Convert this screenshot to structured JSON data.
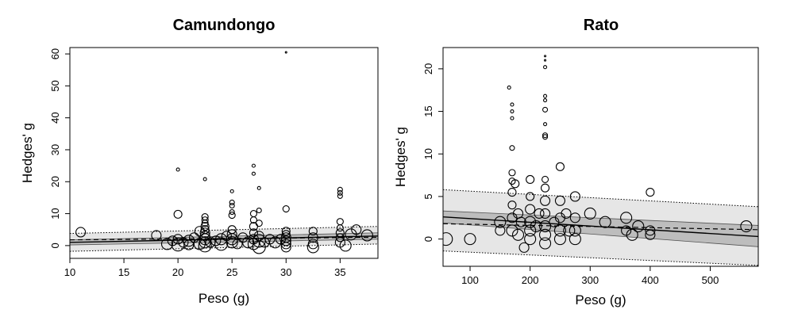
{
  "chart_data": [
    {
      "type": "scatter",
      "title": "Camundongo",
      "xlabel": "Peso (g)",
      "ylabel": "Hedges' g",
      "xlim": [
        10,
        38.5
      ],
      "ylim": [
        -4,
        62
      ],
      "xticks": [
        10,
        15,
        20,
        25,
        30,
        35
      ],
      "yticks": [
        0,
        10,
        20,
        30,
        40,
        50,
        60
      ],
      "grid": false,
      "points": [
        [
          11,
          4.2,
          6
        ],
        [
          18,
          3.2,
          6
        ],
        [
          19,
          0.5,
          7
        ],
        [
          19.5,
          1.5,
          6
        ],
        [
          20,
          23.8,
          2
        ],
        [
          20,
          9.8,
          5
        ],
        [
          20,
          2.0,
          6
        ],
        [
          20,
          0.3,
          8
        ],
        [
          20.5,
          1.0,
          6
        ],
        [
          21,
          1.5,
          7
        ],
        [
          21,
          0.2,
          6
        ],
        [
          21.5,
          2.5,
          6
        ],
        [
          22,
          4.5,
          6
        ],
        [
          22,
          0.5,
          7
        ],
        [
          22.5,
          20.8,
          2
        ],
        [
          22.5,
          9.0,
          4
        ],
        [
          22.5,
          8.0,
          4
        ],
        [
          22.5,
          7.0,
          4
        ],
        [
          22.5,
          6.0,
          5
        ],
        [
          22.5,
          5.0,
          5
        ],
        [
          22.5,
          4.0,
          6
        ],
        [
          22.5,
          3.0,
          6
        ],
        [
          22.5,
          2.0,
          7
        ],
        [
          22.5,
          1.0,
          7
        ],
        [
          22.5,
          0.0,
          8
        ],
        [
          23,
          1.0,
          6
        ],
        [
          23.5,
          1.5,
          6
        ],
        [
          24,
          2.0,
          7
        ],
        [
          24,
          0.5,
          8
        ],
        [
          24.5,
          3.0,
          6
        ],
        [
          25,
          17.0,
          2
        ],
        [
          25,
          13.5,
          3
        ],
        [
          25,
          12.5,
          3
        ],
        [
          25,
          10.5,
          3
        ],
        [
          25,
          9.5,
          4
        ],
        [
          25,
          5.0,
          5
        ],
        [
          25,
          3.5,
          6
        ],
        [
          25,
          2.0,
          7
        ],
        [
          25,
          1.0,
          7
        ],
        [
          25.5,
          0.5,
          6
        ],
        [
          26,
          2.5,
          6
        ],
        [
          26.5,
          1.0,
          7
        ],
        [
          27,
          25.0,
          2
        ],
        [
          27,
          22.5,
          2
        ],
        [
          27,
          10.0,
          4
        ],
        [
          27,
          8.0,
          4
        ],
        [
          27,
          6.0,
          5
        ],
        [
          27,
          4.0,
          5
        ],
        [
          27,
          2.0,
          6
        ],
        [
          27,
          0.5,
          7
        ],
        [
          27.5,
          18.0,
          2
        ],
        [
          27.5,
          11.0,
          3
        ],
        [
          27.5,
          7.0,
          4
        ],
        [
          27.5,
          3.0,
          6
        ],
        [
          27.5,
          1.5,
          8
        ],
        [
          27.5,
          -0.5,
          8
        ],
        [
          28,
          1.0,
          6
        ],
        [
          28.5,
          2.0,
          6
        ],
        [
          29,
          1.0,
          7
        ],
        [
          29.5,
          2.0,
          6
        ],
        [
          30,
          60.5,
          1
        ],
        [
          30,
          11.5,
          4
        ],
        [
          30,
          4.5,
          5
        ],
        [
          30,
          3.5,
          5
        ],
        [
          30,
          2.5,
          6
        ],
        [
          30,
          1.5,
          6
        ],
        [
          30,
          0.5,
          6
        ],
        [
          30,
          -0.5,
          6
        ],
        [
          32.5,
          4.5,
          5
        ],
        [
          32.5,
          2.5,
          6
        ],
        [
          32.5,
          0.5,
          6
        ],
        [
          32.5,
          -0.5,
          7
        ],
        [
          35,
          17.5,
          3
        ],
        [
          35,
          16.5,
          3
        ],
        [
          35,
          15.5,
          3
        ],
        [
          35,
          7.5,
          4
        ],
        [
          35,
          5.5,
          4
        ],
        [
          35,
          4.0,
          5
        ],
        [
          35,
          2.5,
          5
        ],
        [
          35,
          1.0,
          6
        ],
        [
          35.5,
          0.0,
          7
        ],
        [
          36,
          3.5,
          7
        ],
        [
          36.5,
          5.0,
          6
        ],
        [
          37.5,
          3.2,
          7
        ]
      ],
      "regression": {
        "line": [
          [
            10,
            1.0
          ],
          [
            38.5,
            3.0
          ]
        ],
        "ci_lower": [
          [
            10,
            0.2
          ],
          [
            38.5,
            2.0
          ]
        ],
        "ci_upper": [
          [
            10,
            1.8
          ],
          [
            38.5,
            4.0
          ]
        ],
        "pi_lower": [
          [
            10,
            -1.8
          ],
          [
            38.5,
            0.5
          ]
        ],
        "pi_upper": [
          [
            10,
            3.8
          ],
          [
            38.5,
            6.0
          ]
        ],
        "dashed": [
          [
            10,
            1.8
          ],
          [
            38.5,
            2.6
          ]
        ]
      }
    },
    {
      "type": "scatter",
      "title": "Rato",
      "xlabel": "Peso (g)",
      "ylabel": "Hedges' g",
      "xlim": [
        55,
        580
      ],
      "ylim": [
        -3.2,
        22.5
      ],
      "xticks": [
        100,
        200,
        300,
        400,
        500
      ],
      "yticks": [
        0,
        5,
        10,
        15,
        20
      ],
      "grid": false,
      "points": [
        [
          60,
          0.0,
          8
        ],
        [
          100,
          0.0,
          7
        ],
        [
          150,
          2.0,
          7
        ],
        [
          150,
          1.0,
          6
        ],
        [
          165,
          17.8,
          2
        ],
        [
          170,
          15.8,
          2
        ],
        [
          170,
          15.0,
          2
        ],
        [
          170,
          14.2,
          2
        ],
        [
          170,
          10.7,
          3
        ],
        [
          170,
          7.8,
          4
        ],
        [
          170,
          6.8,
          4
        ],
        [
          170,
          5.5,
          5
        ],
        [
          170,
          4.0,
          5
        ],
        [
          170,
          2.5,
          6
        ],
        [
          170,
          1.0,
          7
        ],
        [
          175,
          6.5,
          5
        ],
        [
          180,
          3.0,
          6
        ],
        [
          180,
          0.5,
          7
        ],
        [
          185,
          2.0,
          6
        ],
        [
          190,
          -1.0,
          6
        ],
        [
          200,
          7.0,
          5
        ],
        [
          200,
          5.0,
          5
        ],
        [
          200,
          3.5,
          6
        ],
        [
          200,
          2.0,
          7
        ],
        [
          200,
          1.0,
          7
        ],
        [
          200,
          0.0,
          7
        ],
        [
          210,
          1.5,
          7
        ],
        [
          215,
          3.0,
          6
        ],
        [
          225,
          21.5,
          1
        ],
        [
          225,
          21.0,
          1
        ],
        [
          225,
          20.2,
          2
        ],
        [
          225,
          16.8,
          2
        ],
        [
          225,
          16.3,
          2
        ],
        [
          225,
          15.2,
          3
        ],
        [
          225,
          13.5,
          2
        ],
        [
          225,
          12.2,
          3
        ],
        [
          225,
          12.0,
          3
        ],
        [
          225,
          7.0,
          4
        ],
        [
          225,
          6.0,
          5
        ],
        [
          225,
          4.5,
          6
        ],
        [
          225,
          3.0,
          6
        ],
        [
          225,
          1.5,
          7
        ],
        [
          225,
          0.5,
          7
        ],
        [
          225,
          -0.5,
          7
        ],
        [
          240,
          2.0,
          6
        ],
        [
          250,
          8.5,
          5
        ],
        [
          250,
          4.5,
          6
        ],
        [
          250,
          2.5,
          6
        ],
        [
          250,
          1.0,
          7
        ],
        [
          250,
          0.0,
          7
        ],
        [
          260,
          3.0,
          6
        ],
        [
          265,
          1.0,
          7
        ],
        [
          275,
          5.0,
          6
        ],
        [
          275,
          2.5,
          6
        ],
        [
          275,
          1.0,
          7
        ],
        [
          275,
          0.0,
          7
        ],
        [
          300,
          3.0,
          7
        ],
        [
          325,
          2.0,
          7
        ],
        [
          360,
          2.5,
          7
        ],
        [
          360,
          1.0,
          6
        ],
        [
          370,
          0.5,
          7
        ],
        [
          380,
          1.5,
          7
        ],
        [
          400,
          5.5,
          5
        ],
        [
          400,
          1.0,
          6
        ],
        [
          400,
          0.5,
          6
        ],
        [
          560,
          1.5,
          7
        ]
      ],
      "regression": {
        "line": [
          [
            55,
            2.6
          ],
          [
            580,
            0.3
          ]
        ],
        "ci_lower": [
          [
            55,
            1.9
          ],
          [
            580,
            -0.9
          ]
        ],
        "ci_upper": [
          [
            55,
            3.3
          ],
          [
            580,
            1.6
          ]
        ],
        "pi_lower": [
          [
            55,
            -1.4
          ],
          [
            580,
            -3.1
          ]
        ],
        "pi_upper": [
          [
            55,
            5.8
          ],
          [
            580,
            3.8
          ]
        ],
        "dashed": [
          [
            55,
            1.8
          ],
          [
            580,
            1.1
          ]
        ]
      }
    }
  ]
}
